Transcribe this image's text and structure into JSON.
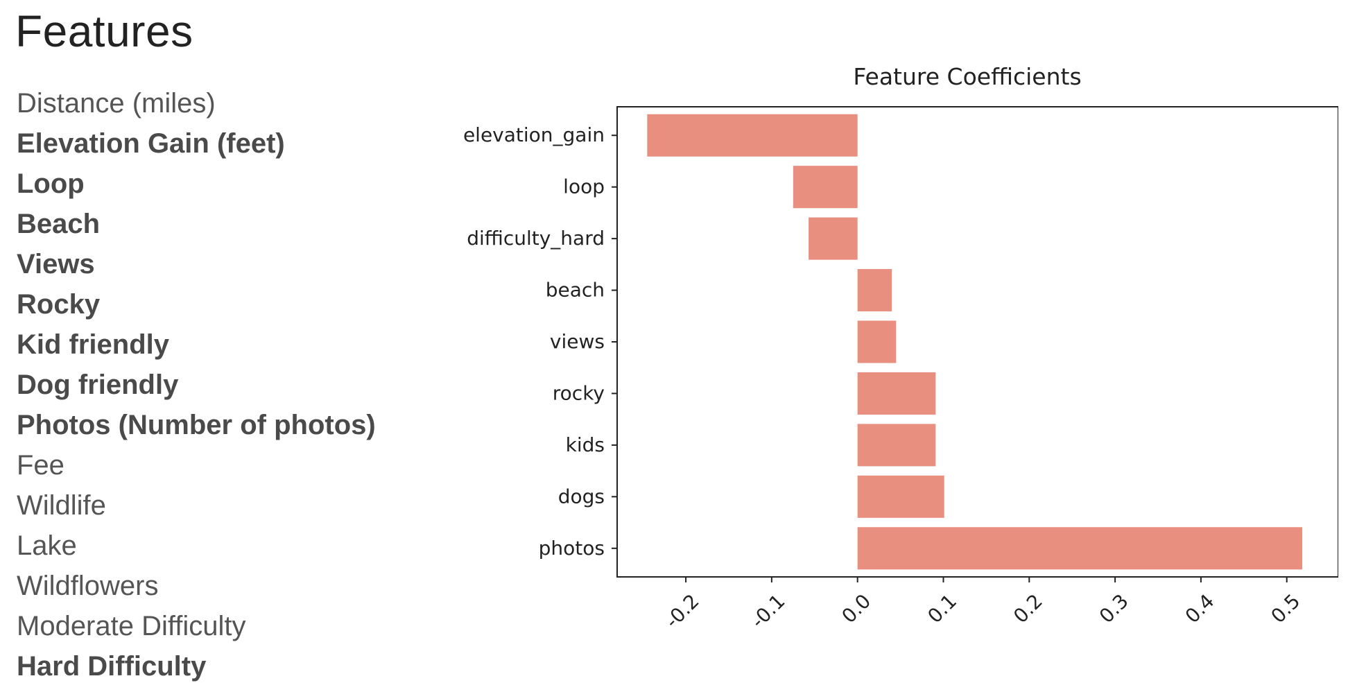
{
  "page": {
    "heading": "Features"
  },
  "features": [
    {
      "label": "Distance (miles)",
      "bold": false
    },
    {
      "label": "Elevation Gain (feet)",
      "bold": true
    },
    {
      "label": "Loop",
      "bold": true
    },
    {
      "label": "Beach",
      "bold": true
    },
    {
      "label": "Views",
      "bold": true
    },
    {
      "label": "Rocky",
      "bold": true
    },
    {
      "label": "Kid friendly",
      "bold": true
    },
    {
      "label": "Dog friendly",
      "bold": true
    },
    {
      "label": "Photos (Number of photos)",
      "bold": true
    },
    {
      "label": "Fee",
      "bold": false
    },
    {
      "label": "Wildlife",
      "bold": false
    },
    {
      "label": "Lake",
      "bold": false
    },
    {
      "label": "Wildflowers",
      "bold": false
    },
    {
      "label": "Moderate Difficulty",
      "bold": false
    },
    {
      "label": "Hard Difficulty",
      "bold": true
    }
  ],
  "chart_data": {
    "type": "bar",
    "orientation": "horizontal",
    "title": "Feature Coefficients",
    "xlabel": "",
    "ylabel": "",
    "categories": [
      "elevation_gain",
      "loop",
      "difficulty_hard",
      "beach",
      "views",
      "rocky",
      "kids",
      "dogs",
      "photos"
    ],
    "values": [
      -0.245,
      -0.075,
      -0.057,
      0.04,
      0.045,
      0.091,
      0.091,
      0.101,
      0.518
    ],
    "xlim": [
      -0.28,
      0.56
    ],
    "xticks": [
      -0.2,
      -0.1,
      0.0,
      0.1,
      0.2,
      0.3,
      0.4,
      0.5
    ],
    "xtick_labels": [
      "-0.2",
      "-0.1",
      "0.0",
      "0.1",
      "0.2",
      "0.3",
      "0.4",
      "0.5"
    ],
    "xtick_rotation_deg": 45,
    "bar_color": "#e88f80",
    "axis_color": "#222222",
    "grid": false,
    "legend": "none"
  }
}
